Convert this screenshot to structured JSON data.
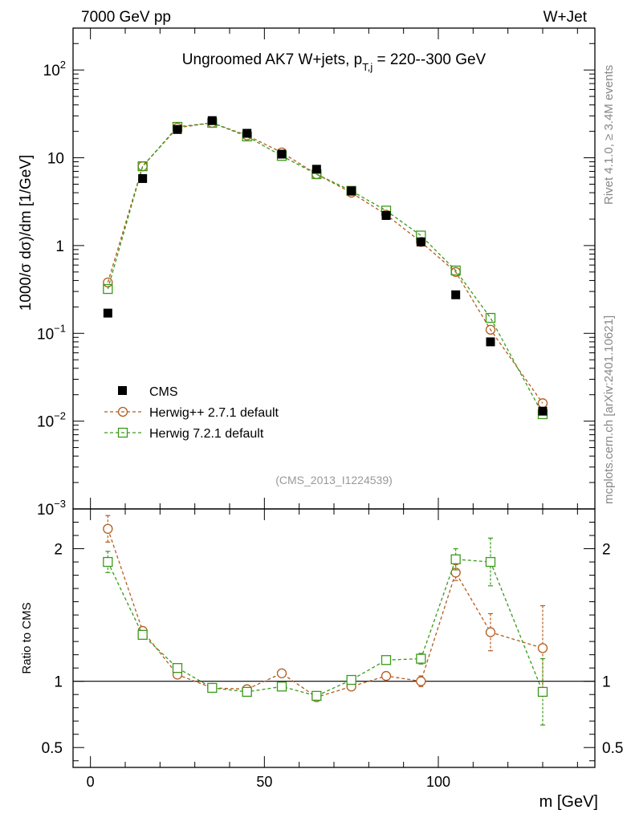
{
  "header": {
    "left": "7000 GeV pp",
    "right": "W+Jet"
  },
  "side": {
    "rivet": "Rivet 4.1.0, ≥ 3.4M events",
    "mcplots": "mcplots.cern.ch [arXiv:2401.10621]"
  },
  "chart_data": {
    "type": "scatter",
    "title": "Ungroomed AK7 W+jets, p_{T,j} = 220--300 GeV",
    "title_main": "Ungroomed AK7 W+jets, p",
    "title_sub": "T,j",
    "title_tail": " = 220--300 GeV",
    "analysis_id": "(CMS_2013_I1224539)",
    "xlabel": "m [GeV]",
    "ylabel": "1000/σ  dσ)/dm [1/GeV]",
    "ratio_ylabel": "Ratio to CMS",
    "xlim": [
      -5,
      145
    ],
    "ylim_log": [
      0.001,
      300
    ],
    "ratio_ylim": [
      0.35,
      2.3
    ],
    "x_ticks": [
      0,
      50,
      100
    ],
    "x_tick_labels": [
      "0",
      "50",
      "100"
    ],
    "main_tick_labels": [
      {
        "value": 0.001,
        "base": "10",
        "exp": "−3"
      },
      {
        "value": 0.01,
        "base": "10",
        "exp": "−2"
      },
      {
        "value": 0.1,
        "base": "10",
        "exp": "−1"
      },
      {
        "value": 1,
        "base": "1",
        "exp": ""
      },
      {
        "value": 10,
        "base": "10",
        "exp": ""
      },
      {
        "value": 100,
        "base": "10",
        "exp": "2"
      }
    ],
    "ratio_ticks": [
      0.5,
      1,
      2
    ],
    "ratio_tick_labels": [
      "0.5",
      "1",
      "2"
    ],
    "x": [
      5,
      15,
      25,
      35,
      45,
      55,
      65,
      75,
      85,
      95,
      105,
      115,
      130
    ],
    "series": [
      {
        "name": "CMS",
        "style": "data",
        "color": "#000000",
        "values": [
          0.17,
          5.8,
          21,
          26.5,
          19,
          11,
          7.4,
          4.2,
          2.2,
          1.1,
          0.275,
          0.08,
          0.013
        ],
        "ratio": [
          1,
          1,
          1,
          1,
          1,
          1,
          1,
          1,
          1,
          1,
          1,
          1,
          1
        ]
      },
      {
        "name": "Herwig++ 2.7.1 default",
        "style": "circle",
        "color": "#b35c1e",
        "values": [
          0.38,
          8.0,
          22,
          25.0,
          18.0,
          11.5,
          6.5,
          4.0,
          2.25,
          1.1,
          0.5,
          0.11,
          0.016
        ],
        "ratio": [
          2.15,
          1.38,
          1.05,
          0.95,
          0.94,
          1.06,
          0.88,
          0.96,
          1.04,
          1.0,
          1.82,
          1.37,
          1.25
        ],
        "ratio_err": [
          0.1,
          0.03,
          0.02,
          0.01,
          0.01,
          0.01,
          0.02,
          0.02,
          0.02,
          0.04,
          0.06,
          0.14,
          0.32
        ]
      },
      {
        "name": "Herwig 7.2.1 default",
        "style": "square",
        "color": "#3a9a1a",
        "values": [
          0.32,
          8.0,
          22.5,
          25.0,
          17.5,
          10.5,
          6.5,
          4.2,
          2.5,
          1.3,
          0.52,
          0.15,
          0.012
        ],
        "ratio": [
          1.9,
          1.35,
          1.1,
          0.95,
          0.92,
          0.96,
          0.89,
          1.01,
          1.16,
          1.17,
          1.92,
          1.9,
          0.92
        ],
        "ratio_err": [
          0.08,
          0.03,
          0.02,
          0.01,
          0.01,
          0.01,
          0.02,
          0.02,
          0.02,
          0.04,
          0.08,
          0.18,
          0.25
        ]
      }
    ]
  }
}
